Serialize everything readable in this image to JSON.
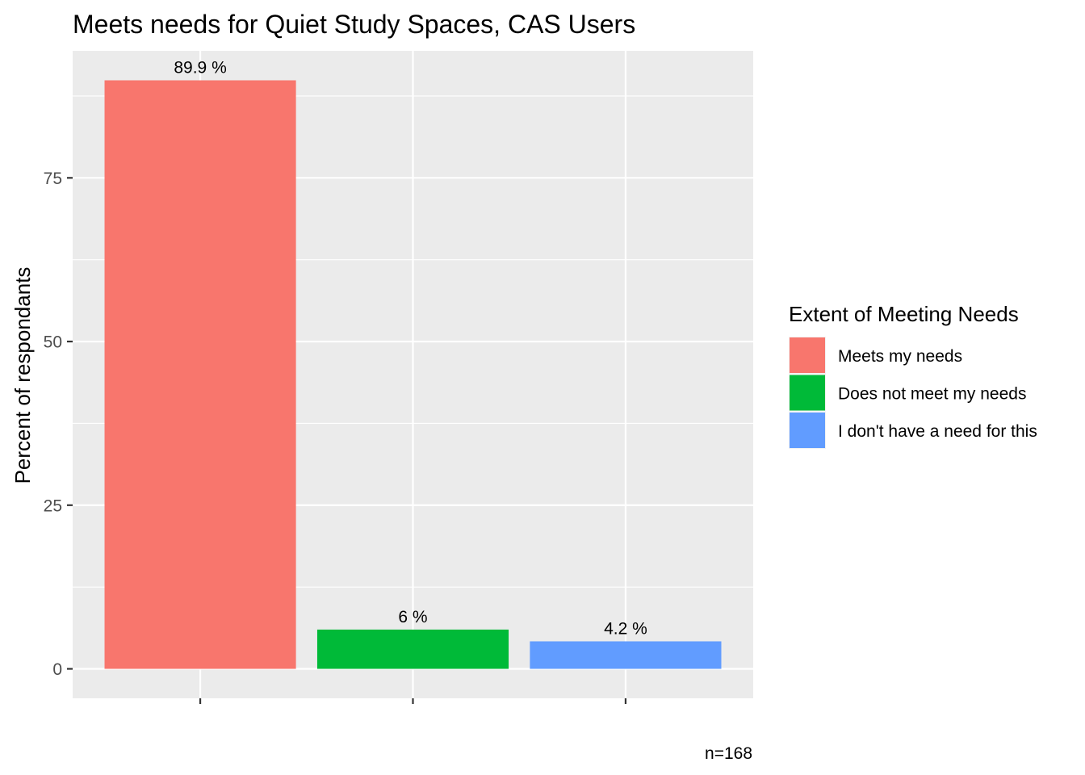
{
  "chart_data": {
    "type": "bar",
    "title": "Meets needs for Quiet Study Spaces, CAS Users",
    "xlabel": "",
    "ylabel": "Percent of respondants",
    "caption": "n=168",
    "categories": [
      "Meets my needs",
      "Does not meet my needs",
      "I don't have a need for this"
    ],
    "values": [
      89.9,
      6,
      4.2
    ],
    "data_labels": [
      "89.9 %",
      "6 %",
      "4.2 %"
    ],
    "colors": [
      "#F8766D",
      "#00BA38",
      "#619CFF"
    ],
    "ylim": [
      -4.5,
      94.4
    ],
    "yticks": [
      0,
      25,
      50,
      75
    ],
    "ytick_labels": [
      "0",
      "25",
      "50",
      "75"
    ],
    "grid": true,
    "panel_background": "#EBEBEB",
    "grid_color": "#FFFFFF",
    "legend": {
      "title": "Extent of Meeting Needs",
      "position": "right",
      "entries": [
        "Meets my needs",
        "Does not meet my needs",
        "I don't have a need for this"
      ]
    }
  }
}
